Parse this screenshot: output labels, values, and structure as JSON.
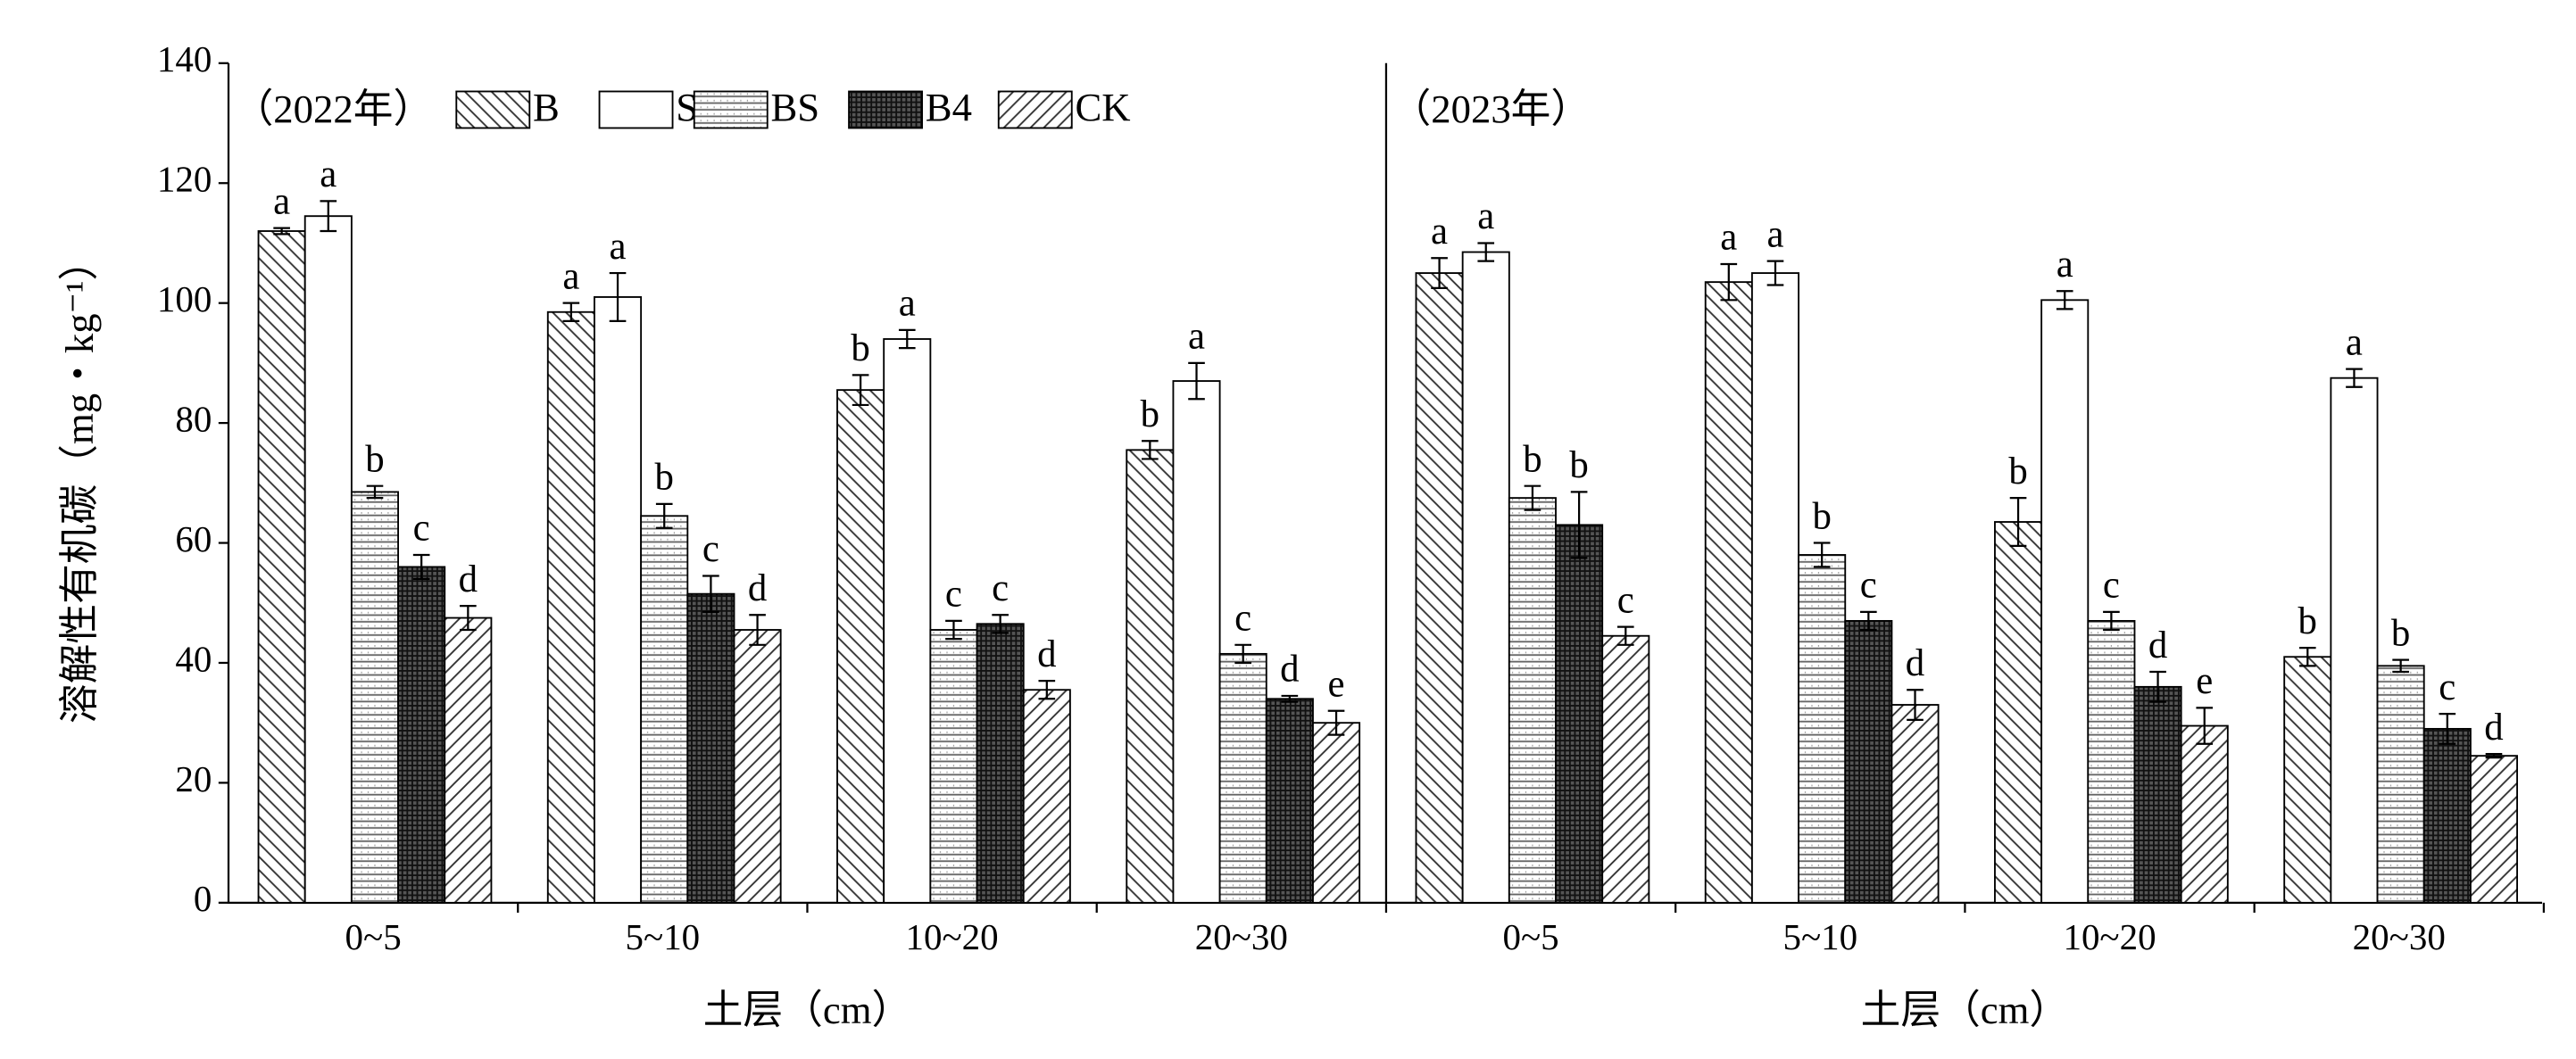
{
  "chart_data": [
    {
      "type": "bar",
      "title": "（2022年）",
      "y_label": "溶解性有机碳（mg・kg⁻¹）",
      "x_label": "土层（cm）",
      "categories": [
        "0~5",
        "5~10",
        "10~20",
        "20~30"
      ],
      "ylim": [
        0,
        140
      ],
      "yticks": [
        0,
        20,
        40,
        60,
        80,
        100,
        120,
        140
      ],
      "series": [
        {
          "name": "B",
          "pattern": "diag-back",
          "values": [
            112,
            98.5,
            85.5,
            75.5
          ],
          "errors": [
            0.5,
            1.5,
            2.5,
            1.5
          ],
          "letters": [
            "a",
            "a",
            "b",
            "b"
          ]
        },
        {
          "name": "S",
          "pattern": "none",
          "values": [
            114.5,
            101,
            94,
            87
          ],
          "errors": [
            2.5,
            4,
            1.5,
            3
          ],
          "letters": [
            "a",
            "a",
            "a",
            "a"
          ]
        },
        {
          "name": "BS",
          "pattern": "horizontal",
          "values": [
            68.5,
            64.5,
            45.5,
            41.5
          ],
          "errors": [
            1,
            2,
            1.5,
            1.5
          ],
          "letters": [
            "b",
            "b",
            "c",
            "c"
          ]
        },
        {
          "name": "B4",
          "pattern": "grid",
          "values": [
            56,
            51.5,
            46.5,
            34
          ],
          "errors": [
            2,
            3,
            1.5,
            0.5
          ],
          "letters": [
            "c",
            "c",
            "c",
            "d"
          ]
        },
        {
          "name": "CK",
          "pattern": "diag-fwd",
          "values": [
            47.5,
            45.5,
            35.5,
            30
          ],
          "errors": [
            2,
            2.5,
            1.5,
            2
          ],
          "letters": [
            "d",
            "d",
            "d",
            "e"
          ]
        }
      ]
    },
    {
      "type": "bar",
      "title": "（2023年）",
      "x_label": "土层（cm）",
      "categories": [
        "0~5",
        "5~10",
        "10~20",
        "20~30"
      ],
      "series": [
        {
          "values": [
            105,
            103.5,
            63.5,
            41
          ],
          "errors": [
            2.5,
            3,
            4,
            1.5
          ],
          "letters": [
            "a",
            "a",
            "b",
            "b"
          ]
        },
        {
          "values": [
            108.5,
            105,
            100.5,
            87.5
          ],
          "errors": [
            1.5,
            2,
            1.5,
            1.5
          ],
          "letters": [
            "a",
            "a",
            "a",
            "a"
          ]
        },
        {
          "values": [
            67.5,
            58,
            47,
            39.5
          ],
          "errors": [
            2,
            2,
            1.5,
            1
          ],
          "letters": [
            "b",
            "b",
            "c",
            "b"
          ]
        },
        {
          "values": [
            63,
            47,
            36,
            29
          ],
          "errors": [
            5.5,
            1.5,
            2.5,
            2.5
          ],
          "letters": [
            "b",
            "c",
            "d",
            "c"
          ]
        },
        {
          "values": [
            44.5,
            33,
            29.5,
            24.5
          ],
          "errors": [
            1.5,
            2.5,
            3,
            0.3
          ],
          "letters": [
            "c",
            "d",
            "e",
            "d"
          ]
        }
      ]
    }
  ]
}
